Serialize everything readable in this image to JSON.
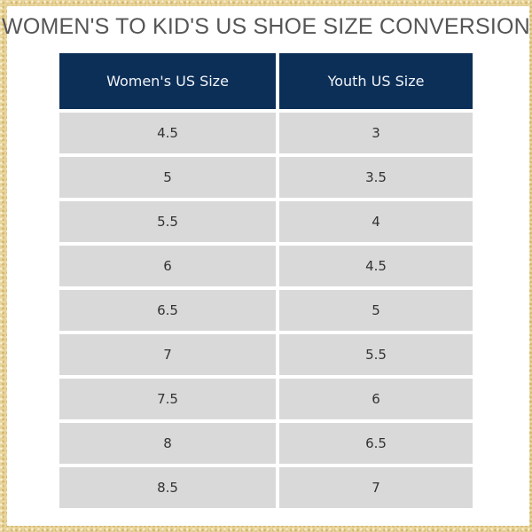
{
  "title": "WOMEN'S TO KID'S US SHOE SIZE CONVERSION",
  "colors": {
    "header_bg": "#0c2f58",
    "cell_bg": "#d9d9d9",
    "border": "#e6cf8f"
  },
  "table": {
    "headers": [
      "Women's US Size",
      "Youth US Size"
    ],
    "rows": [
      [
        "4.5",
        "3"
      ],
      [
        "5",
        "3.5"
      ],
      [
        "5.5",
        "4"
      ],
      [
        "6",
        "4.5"
      ],
      [
        "6.5",
        "5"
      ],
      [
        "7",
        "5.5"
      ],
      [
        "7.5",
        "6"
      ],
      [
        "8",
        "6.5"
      ],
      [
        "8.5",
        "7"
      ]
    ]
  }
}
